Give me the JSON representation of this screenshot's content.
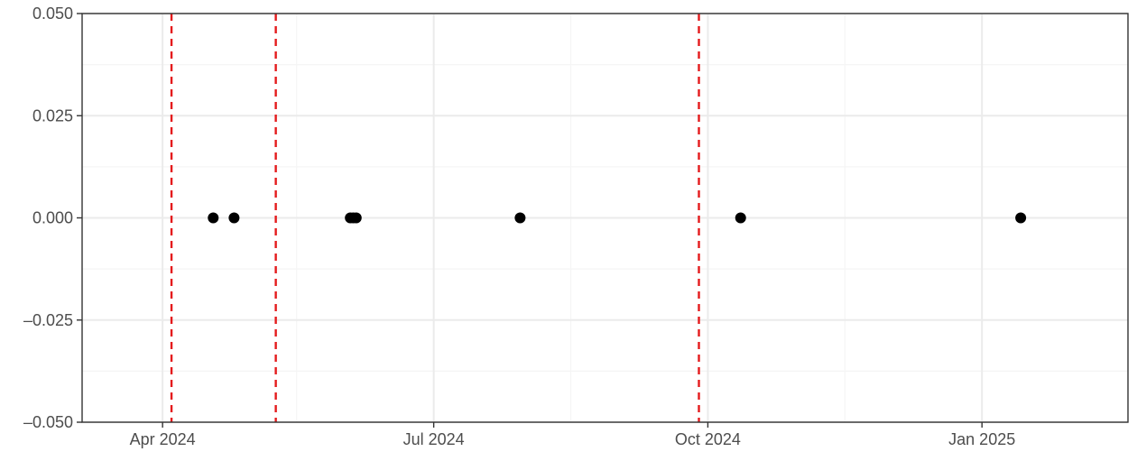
{
  "chart_data": {
    "type": "scatter",
    "title": "",
    "xlabel": "",
    "ylabel": "",
    "x_axis_type": "date",
    "xlim": [
      "2024-03-05",
      "2025-02-19"
    ],
    "ylim": [
      -0.05,
      0.05
    ],
    "x_ticks": [
      {
        "date": "2024-04-01",
        "label": "Apr 2024"
      },
      {
        "date": "2024-07-01",
        "label": "Jul 2024"
      },
      {
        "date": "2024-10-01",
        "label": "Oct 2024"
      },
      {
        "date": "2025-01-01",
        "label": "Jan 2025"
      }
    ],
    "x_minor_ticks": [
      "2024-05-16",
      "2024-08-16",
      "2024-11-16"
    ],
    "y_ticks": [
      {
        "value": 0.05,
        "label": "0.050"
      },
      {
        "value": 0.025,
        "label": "0.025"
      },
      {
        "value": 0.0,
        "label": "0.000"
      },
      {
        "value": -0.025,
        "label": "–0.025"
      },
      {
        "value": -0.05,
        "label": "–0.050"
      }
    ],
    "grid": true,
    "series": [
      {
        "points": [
          {
            "x": "2024-04-18",
            "y": 0
          },
          {
            "x": "2024-04-25",
            "y": 0
          },
          {
            "x": "2024-06-03",
            "y": 0
          },
          {
            "x": "2024-06-04",
            "y": 0
          },
          {
            "x": "2024-06-05",
            "y": 0
          },
          {
            "x": "2024-07-30",
            "y": 0
          },
          {
            "x": "2024-10-12",
            "y": 0
          },
          {
            "x": "2025-01-14",
            "y": 0
          }
        ],
        "color": "#000000"
      }
    ],
    "vlines": [
      {
        "x": "2024-04-04",
        "color": "#e41a1c",
        "style": "dashed"
      },
      {
        "x": "2024-05-09",
        "color": "#e41a1c",
        "style": "dashed"
      },
      {
        "x": "2024-09-28",
        "color": "#e41a1c",
        "style": "dashed"
      }
    ]
  },
  "colors": {
    "point": "#000000",
    "vline": "#e41a1c",
    "grid_major": "#ebebeb",
    "grid_minor": "#f5f5f5",
    "panel_border": "#333333",
    "tick_text": "#4d4d4d"
  }
}
